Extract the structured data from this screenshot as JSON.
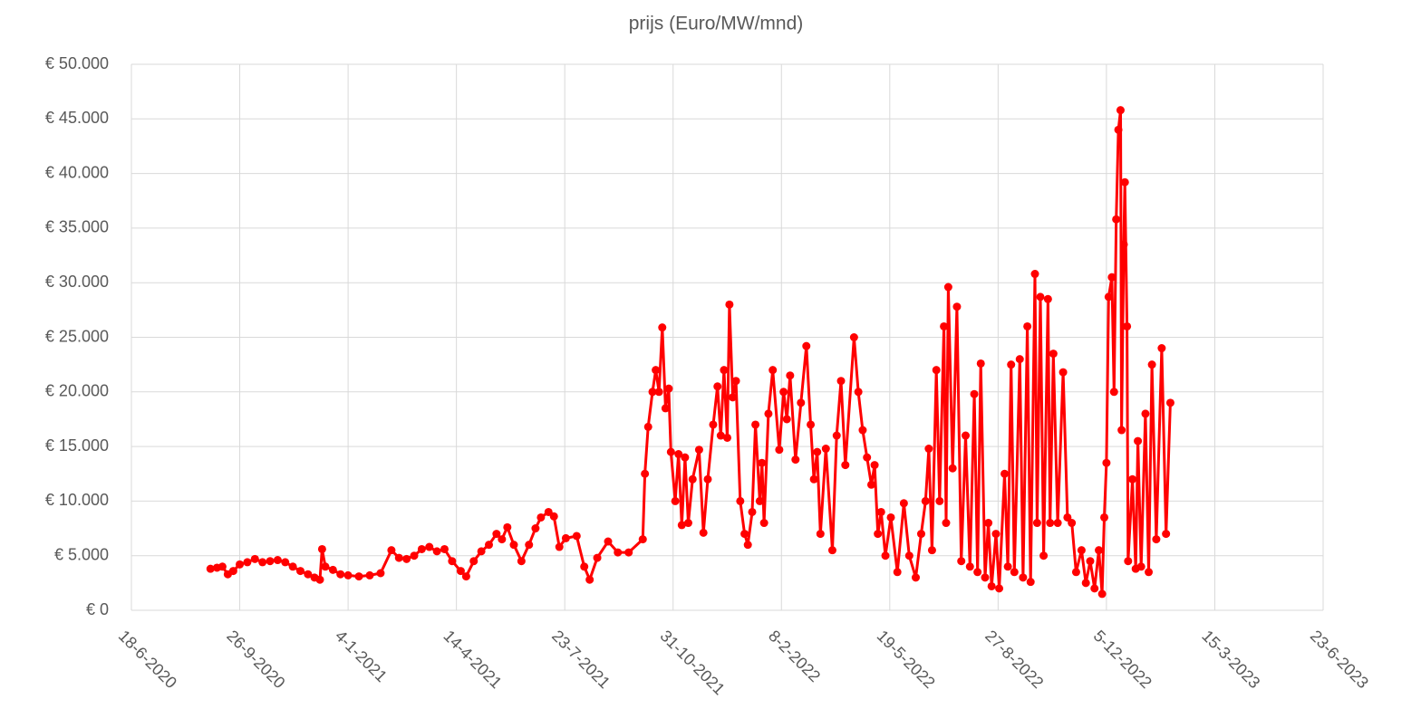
{
  "chart_data": {
    "type": "line",
    "title": "prijs (Euro/MW/mnd)",
    "color": "#ff0000",
    "grid": true,
    "xlim": [
      "2020-06-18",
      "2023-06-23"
    ],
    "xticks": [
      {
        "value": "2020-06-18",
        "label": "18-6-2020"
      },
      {
        "value": "2020-09-26",
        "label": "26-9-2020"
      },
      {
        "value": "2021-01-04",
        "label": "4-1-2021"
      },
      {
        "value": "2021-04-14",
        "label": "14-4-2021"
      },
      {
        "value": "2021-07-23",
        "label": "23-7-2021"
      },
      {
        "value": "2021-10-31",
        "label": "31-10-2021"
      },
      {
        "value": "2022-02-08",
        "label": "8-2-2022"
      },
      {
        "value": "2022-05-19",
        "label": "19-5-2022"
      },
      {
        "value": "2022-08-27",
        "label": "27-8-2022"
      },
      {
        "value": "2022-12-05",
        "label": "5-12-2022"
      },
      {
        "value": "2023-03-15",
        "label": "15-3-2023"
      },
      {
        "value": "2023-06-23",
        "label": "23-6-2023"
      }
    ],
    "ylim": [
      0,
      50000
    ],
    "yticks": [
      {
        "value": 0,
        "label": "€ 0"
      },
      {
        "value": 5000,
        "label": "€ 5.000"
      },
      {
        "value": 10000,
        "label": "€ 10.000"
      },
      {
        "value": 15000,
        "label": "€ 15.000"
      },
      {
        "value": 20000,
        "label": "€ 20.000"
      },
      {
        "value": 25000,
        "label": "€ 25.000"
      },
      {
        "value": 30000,
        "label": "€ 30.000"
      },
      {
        "value": 35000,
        "label": "€ 35.000"
      },
      {
        "value": 40000,
        "label": "€ 40.000"
      },
      {
        "value": 45000,
        "label": "€ 45.000"
      },
      {
        "value": 50000,
        "label": "€ 50.000"
      }
    ],
    "x": [
      "2020-08-30",
      "2020-09-05",
      "2020-09-10",
      "2020-09-15",
      "2020-09-20",
      "2020-09-26",
      "2020-10-03",
      "2020-10-10",
      "2020-10-17",
      "2020-10-24",
      "2020-10-31",
      "2020-11-07",
      "2020-11-14",
      "2020-11-21",
      "2020-11-28",
      "2020-12-04",
      "2020-12-09",
      "2020-12-11",
      "2020-12-14",
      "2020-12-21",
      "2020-12-28",
      "2021-01-04",
      "2021-01-14",
      "2021-01-24",
      "2021-02-03",
      "2021-02-13",
      "2021-02-20",
      "2021-02-27",
      "2021-03-06",
      "2021-03-13",
      "2021-03-20",
      "2021-03-27",
      "2021-04-03",
      "2021-04-10",
      "2021-04-18",
      "2021-04-23",
      "2021-04-30",
      "2021-05-07",
      "2021-05-14",
      "2021-05-21",
      "2021-05-26",
      "2021-05-31",
      "2021-06-06",
      "2021-06-13",
      "2021-06-20",
      "2021-06-26",
      "2021-07-01",
      "2021-07-08",
      "2021-07-13",
      "2021-07-18",
      "2021-07-24",
      "2021-08-03",
      "2021-08-10",
      "2021-08-15",
      "2021-08-22",
      "2021-09-01",
      "2021-09-10",
      "2021-09-20",
      "2021-10-03",
      "2021-10-05",
      "2021-10-08",
      "2021-10-12",
      "2021-10-15",
      "2021-10-18",
      "2021-10-21",
      "2021-10-24",
      "2021-10-27",
      "2021-10-29",
      "2021-11-02",
      "2021-11-05",
      "2021-11-08",
      "2021-11-11",
      "2021-11-14",
      "2021-11-18",
      "2021-11-24",
      "2021-11-28",
      "2021-12-02",
      "2021-12-07",
      "2021-12-11",
      "2021-12-14",
      "2021-12-17",
      "2021-12-20",
      "2021-12-22",
      "2021-12-25",
      "2021-12-28",
      "2022-01-01",
      "2022-01-05",
      "2022-01-08",
      "2022-01-12",
      "2022-01-15",
      "2022-01-19",
      "2022-01-21",
      "2022-01-23",
      "2022-01-27",
      "2022-01-31",
      "2022-02-06",
      "2022-02-10",
      "2022-02-13",
      "2022-02-16",
      "2022-02-21",
      "2022-02-26",
      "2022-03-03",
      "2022-03-07",
      "2022-03-10",
      "2022-03-13",
      "2022-03-16",
      "2022-03-21",
      "2022-03-27",
      "2022-03-31",
      "2022-04-04",
      "2022-04-08",
      "2022-04-16",
      "2022-04-20",
      "2022-04-24",
      "2022-04-28",
      "2022-05-02",
      "2022-05-05",
      "2022-05-08",
      "2022-05-11",
      "2022-05-15",
      "2022-05-20",
      "2022-05-26",
      "2022-06-01",
      "2022-06-06",
      "2022-06-12",
      "2022-06-17",
      "2022-06-21",
      "2022-06-24",
      "2022-06-27",
      "2022-07-01",
      "2022-07-04",
      "2022-07-08",
      "2022-07-10",
      "2022-07-12",
      "2022-07-16",
      "2022-07-20",
      "2022-07-24",
      "2022-07-28",
      "2022-08-01",
      "2022-08-05",
      "2022-08-08",
      "2022-08-11",
      "2022-08-15",
      "2022-08-18",
      "2022-08-21",
      "2022-08-25",
      "2022-08-28",
      "2022-09-02",
      "2022-09-05",
      "2022-09-08",
      "2022-09-11",
      "2022-09-16",
      "2022-09-19",
      "2022-09-23",
      "2022-09-26",
      "2022-09-30",
      "2022-10-02",
      "2022-10-05",
      "2022-10-08",
      "2022-10-12",
      "2022-10-14",
      "2022-10-17",
      "2022-10-21",
      "2022-10-26",
      "2022-10-30",
      "2022-11-03",
      "2022-11-07",
      "2022-11-12",
      "2022-11-16",
      "2022-11-20",
      "2022-11-24",
      "2022-11-28",
      "2022-12-01",
      "2022-12-03",
      "2022-12-05",
      "2022-12-07",
      "2022-12-10",
      "2022-12-12",
      "2022-12-14",
      "2022-12-16",
      "2022-12-18",
      "2022-12-19",
      "2022-12-21",
      "2022-12-22",
      "2022-12-24",
      "2022-12-25",
      "2022-12-29",
      "2023-01-01",
      "2023-01-03",
      "2023-01-06",
      "2023-01-10",
      "2023-01-13",
      "2023-01-16",
      "2023-01-20",
      "2023-01-25",
      "2023-01-29",
      "2023-02-02"
    ],
    "values": [
      3800,
      3900,
      4000,
      3300,
      3600,
      4200,
      4400,
      4700,
      4400,
      4500,
      4600,
      4400,
      4000,
      3600,
      3300,
      3000,
      2800,
      5600,
      4000,
      3700,
      3300,
      3200,
      3100,
      3200,
      3400,
      5500,
      4800,
      4700,
      5000,
      5600,
      5800,
      5400,
      5600,
      4500,
      3600,
      3100,
      4500,
      5400,
      6000,
      7000,
      6500,
      7600,
      6000,
      4500,
      6000,
      7500,
      8500,
      9000,
      8600,
      5800,
      6600,
      6800,
      4000,
      2800,
      4800,
      6300,
      5300,
      5300,
      6500,
      12500,
      16800,
      20000,
      22000,
      20000,
      25900,
      18500,
      20300,
      14500,
      10000,
      14300,
      7800,
      14000,
      8000,
      12000,
      14700,
      7100,
      12000,
      17000,
      20500,
      16000,
      22000,
      15800,
      28000,
      19500,
      21000,
      10000,
      7000,
      6000,
      9000,
      17000,
      10000,
      13500,
      8000,
      18000,
      22000,
      14700,
      20000,
      17500,
      21500,
      13800,
      19000,
      24200,
      17000,
      12000,
      14500,
      7000,
      14800,
      5500,
      16000,
      21000,
      13300,
      25000,
      20000,
      16500,
      14000,
      11500,
      13300,
      7000,
      9000,
      5000,
      8500,
      3500,
      9800,
      5000,
      3000,
      7000,
      10000,
      14800,
      5500,
      22000,
      10000,
      26000,
      8000,
      29600,
      13000,
      27800,
      4500,
      16000,
      4000,
      19800,
      3500,
      22600,
      3000,
      8000,
      2200,
      7000,
      2000,
      12500,
      4000,
      22500,
      3500,
      23000,
      3000,
      26000,
      2600,
      30800,
      8000,
      28700,
      5000,
      28500,
      8000,
      23500,
      8000,
      21800,
      8500,
      8000,
      3500,
      5500,
      2500,
      4500,
      2000,
      5500,
      1500,
      8500,
      13500,
      28700,
      30500,
      20000,
      35800,
      44000,
      45800,
      16500,
      33500,
      39200,
      26000,
      4500,
      12000,
      3800,
      15500,
      4000,
      18000,
      3500,
      22500,
      6500,
      24000,
      7000,
      19000
    ]
  }
}
